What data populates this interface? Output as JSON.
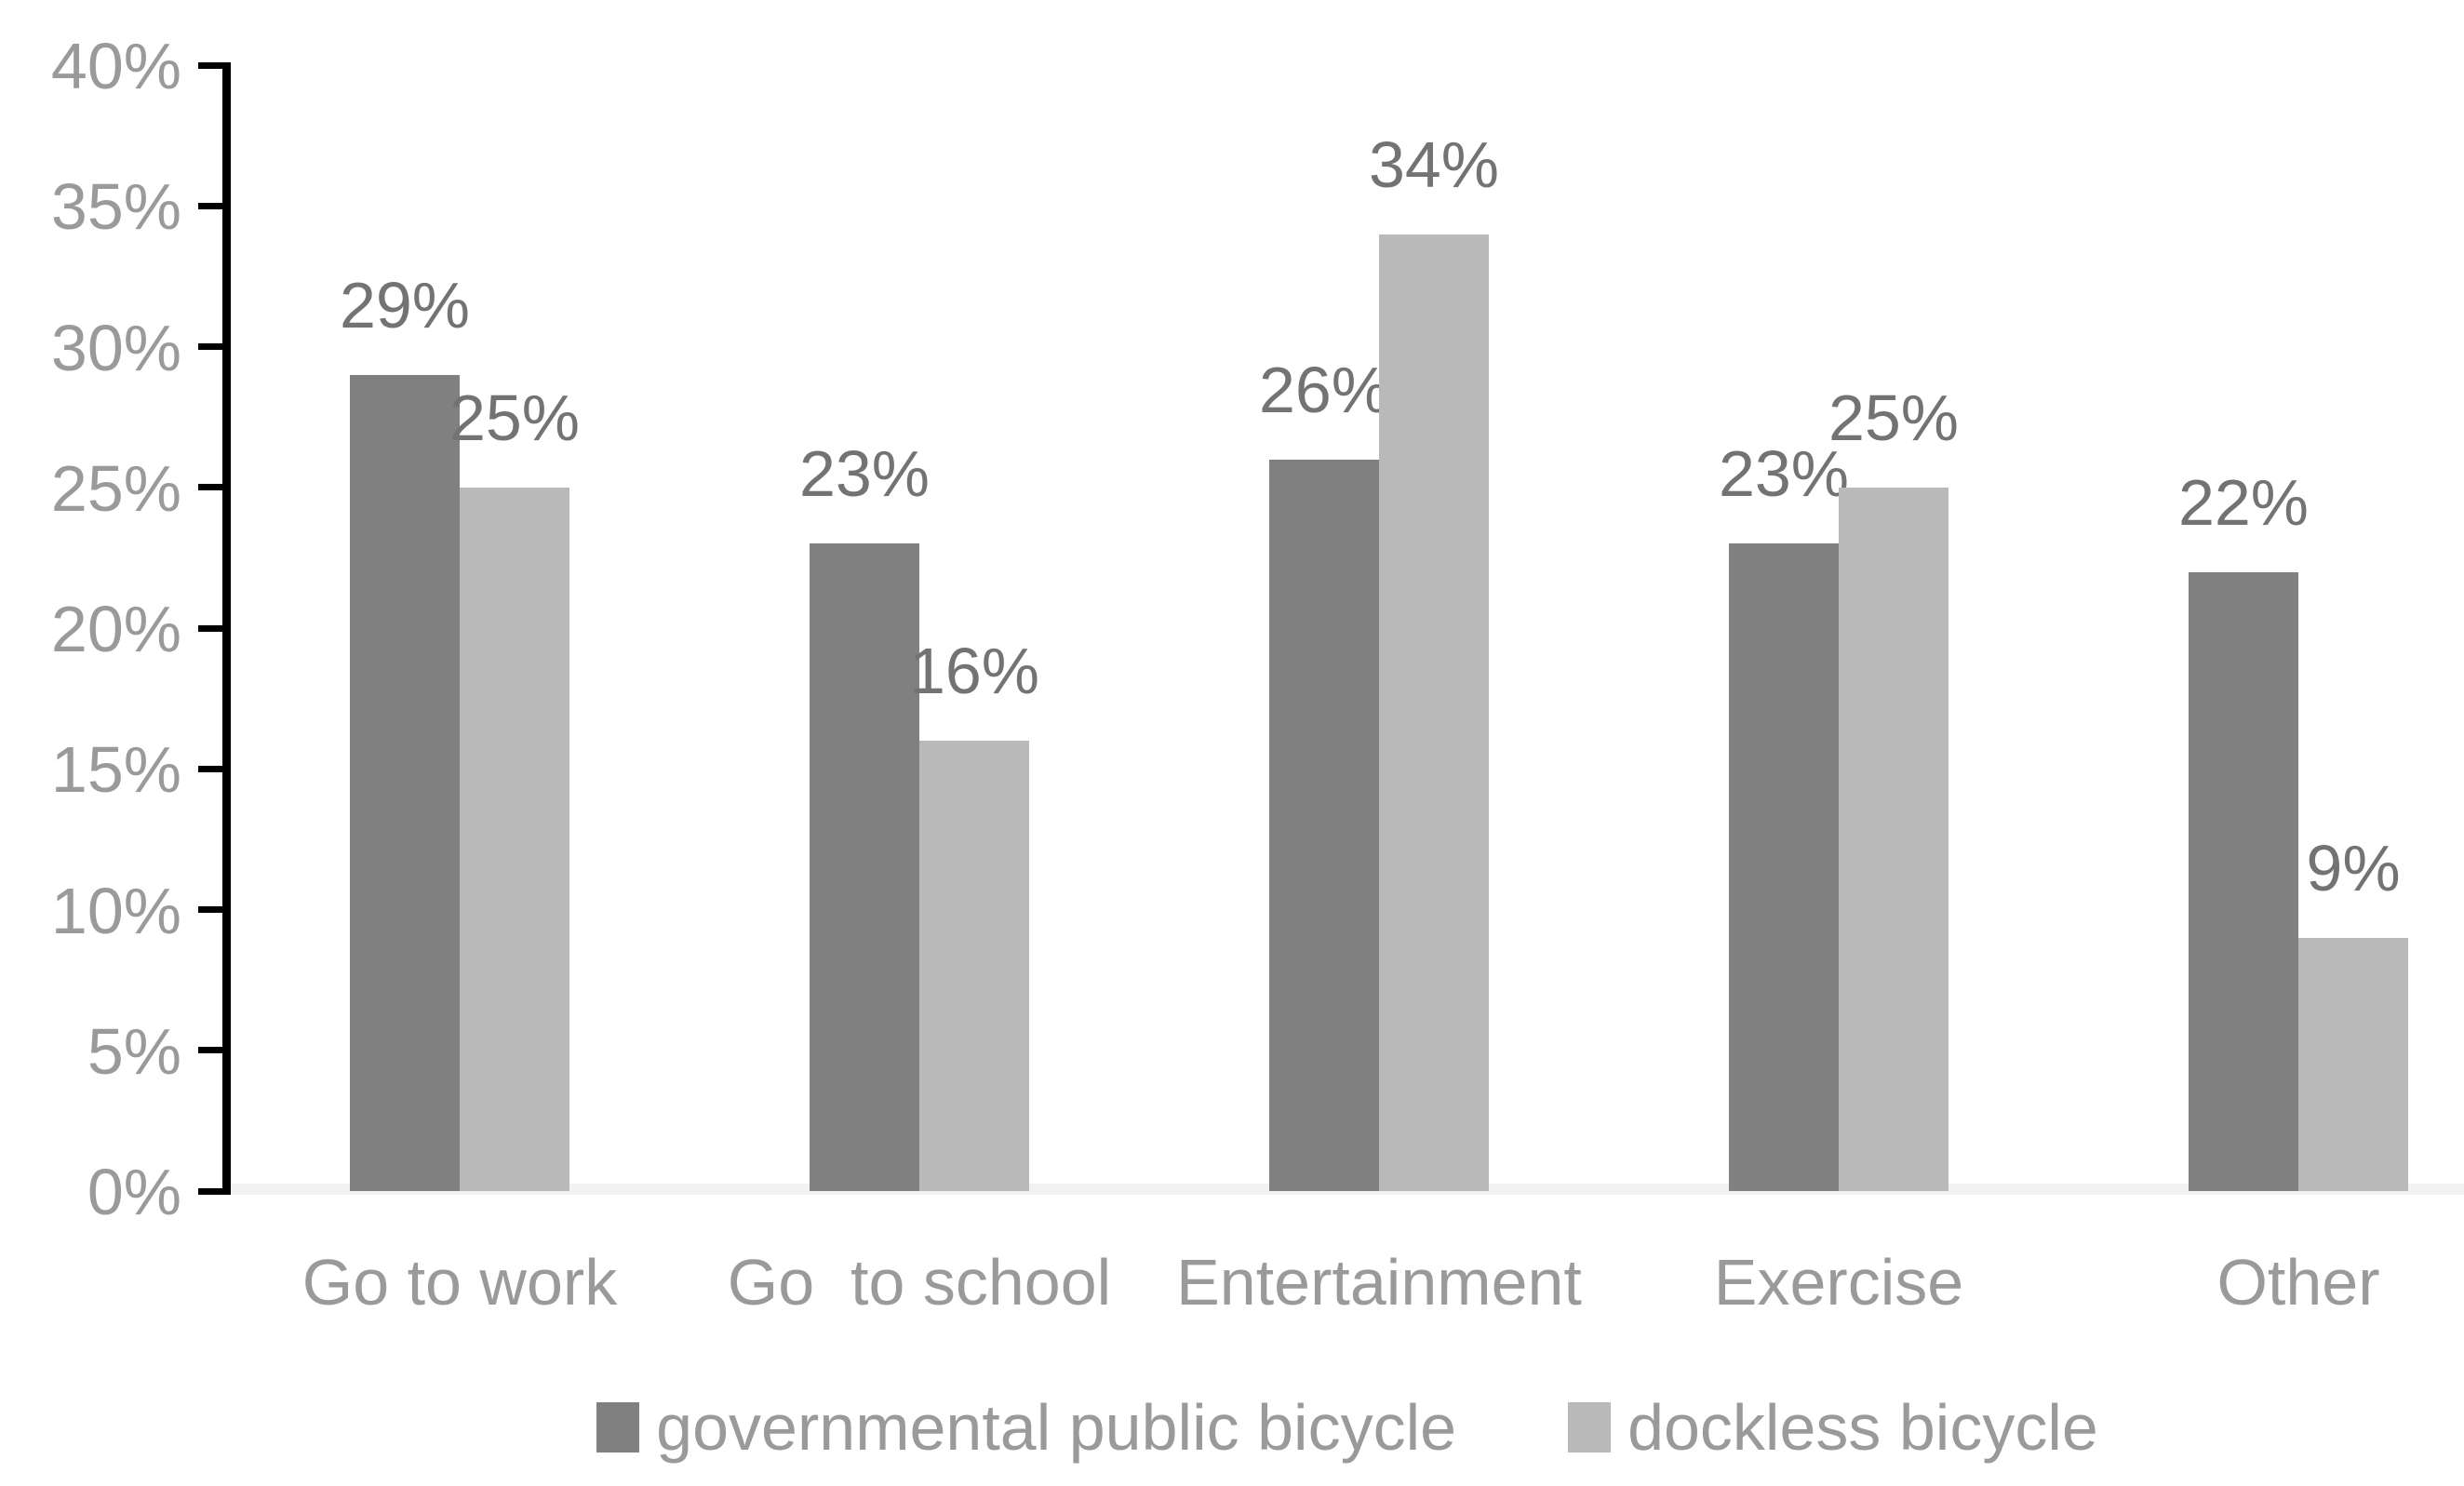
{
  "chart_data": {
    "type": "bar",
    "title": "",
    "xlabel": "",
    "ylabel": "",
    "categories": [
      "Go to work",
      "Go  to school",
      "Entertainment",
      "Exercise",
      "Other"
    ],
    "series": [
      {
        "name": "governmental public bicycle",
        "color": "#808080",
        "values": [
          29,
          23,
          26,
          23,
          22
        ]
      },
      {
        "name": "dockless bicycle",
        "color": "#b9b9b9",
        "values": [
          25,
          16,
          34,
          25,
          9
        ]
      }
    ],
    "data_labels": [
      "29%",
      "25%",
      "23%",
      "16%",
      "26%",
      "34%",
      "23%",
      "25%",
      "22%",
      "9%"
    ],
    "value_suffix": "%",
    "ylim": [
      0,
      40
    ],
    "ytick_step": 5,
    "ytick_labels": [
      "0%",
      "5%",
      "10%",
      "15%",
      "20%",
      "25%",
      "30%",
      "35%",
      "40%"
    ],
    "grid": "off",
    "legend_position": "bottom-center",
    "colors": {
      "axis_line": "#000000",
      "tick_label": "#9a9a9a",
      "category_label": "#9a9a9a",
      "data_label": "#737373",
      "legend_text": "#9a9a9a",
      "baseline_line": "#f2f2f2",
      "background": "#ffffff"
    }
  }
}
